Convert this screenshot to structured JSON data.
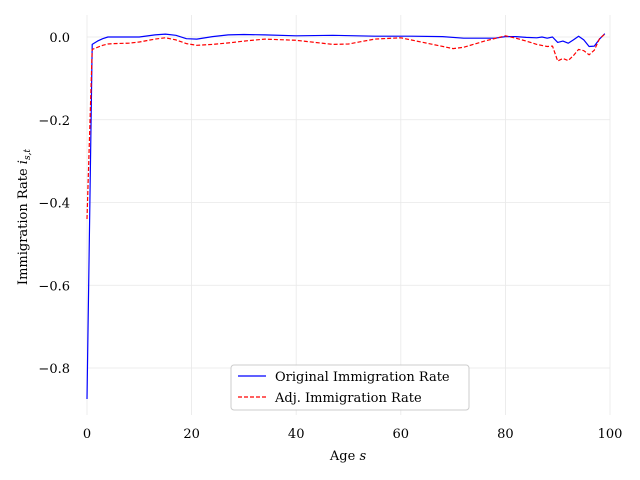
{
  "chart_data": {
    "type": "line",
    "title": "",
    "xlabel": "Age",
    "xlabel_var": "s",
    "ylabel": "Immigration Rate",
    "ylabel_var": "i",
    "ylabel_sub": "s,t",
    "xlim": [
      0,
      100
    ],
    "ylim": [
      -0.92,
      0.05
    ],
    "xticks": [
      0,
      20,
      40,
      60,
      80,
      100
    ],
    "yticks": [
      -0.8,
      -0.6,
      -0.4,
      -0.2,
      0.0
    ],
    "xtick_labels": [
      "0",
      "20",
      "40",
      "60",
      "80",
      "100"
    ],
    "ytick_labels": [
      "−0.8",
      "−0.6",
      "−0.4",
      "−0.2",
      "0.0"
    ],
    "grid": true,
    "legend_position": "lower-center",
    "series": [
      {
        "name": "Original Immigration Rate",
        "color": "#0000ff",
        "style": "solid",
        "x": [
          0,
          1,
          2,
          3,
          4,
          5,
          10,
          13,
          15,
          17,
          19,
          21,
          24,
          27,
          30,
          34,
          40,
          47,
          55,
          62,
          68,
          72,
          78,
          80,
          82,
          84,
          86,
          87,
          88,
          89,
          90,
          91,
          92,
          93,
          94,
          95,
          96,
          97,
          98,
          99
        ],
        "y": [
          -0.875,
          -0.018,
          -0.01,
          -0.004,
          0.0,
          0.0,
          0.0,
          0.005,
          0.007,
          0.004,
          -0.004,
          -0.005,
          0.001,
          0.005,
          0.006,
          0.005,
          0.003,
          0.004,
          0.002,
          0.002,
          0.001,
          -0.003,
          -0.003,
          0.001,
          0.001,
          -0.001,
          -0.002,
          0.0,
          -0.003,
          0.0,
          -0.013,
          -0.01,
          -0.015,
          -0.007,
          0.002,
          -0.007,
          -0.023,
          -0.022,
          -0.005,
          0.008
        ]
      },
      {
        "name": "Adj. Immigration Rate",
        "color": "#ff0000",
        "style": "dashed",
        "x": [
          0,
          1,
          2,
          3,
          4,
          5,
          8,
          10,
          13,
          15,
          17,
          19,
          21,
          24,
          28,
          30,
          34,
          40,
          47,
          50,
          55,
          60,
          65,
          70,
          72,
          76,
          80,
          82,
          84,
          86,
          88,
          89,
          90,
          91,
          92,
          93,
          94,
          95,
          96,
          97,
          98,
          99
        ],
        "y": [
          -0.44,
          -0.03,
          -0.025,
          -0.02,
          -0.017,
          -0.016,
          -0.015,
          -0.012,
          -0.005,
          -0.002,
          -0.007,
          -0.016,
          -0.02,
          -0.018,
          -0.013,
          -0.01,
          -0.005,
          -0.008,
          -0.018,
          -0.017,
          -0.005,
          -0.002,
          -0.015,
          -0.028,
          -0.025,
          -0.01,
          0.003,
          -0.003,
          -0.01,
          -0.018,
          -0.023,
          -0.022,
          -0.058,
          -0.052,
          -0.057,
          -0.045,
          -0.03,
          -0.033,
          -0.043,
          -0.032,
          -0.004,
          0.007
        ]
      }
    ]
  }
}
